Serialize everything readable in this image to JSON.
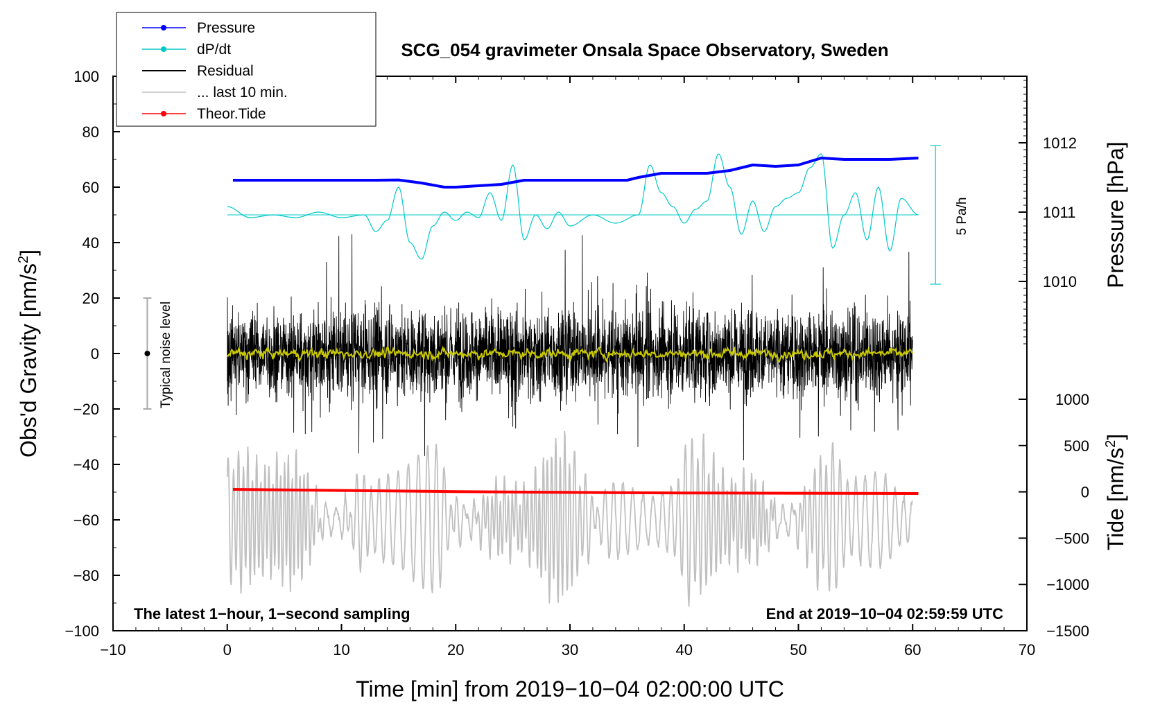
{
  "chart_data": {
    "type": "line",
    "title": "SCG_054 gravimeter Onsala Space Observatory, Sweden",
    "xlabel": "Time [min] from 2019−10−04 02:00:00 UTC",
    "ylabel_main": "Obs'd Gravity [nm/s",
    "ylabel_sup": "2",
    "ylabel_close": "]",
    "y2label_pressure": "Pressure [hPa]",
    "y2label_tide": "Tide [nm/s",
    "y2label_tide_sup": "2",
    "y2label_tide_close": "]",
    "xlim": [
      -10,
      70
    ],
    "ylim": [
      -100,
      100
    ],
    "x_ticks": [
      "−10",
      "0",
      "10",
      "20",
      "30",
      "40",
      "50",
      "60",
      "70"
    ],
    "x_tick_values": [
      -10,
      0,
      10,
      20,
      30,
      40,
      50,
      60,
      70
    ],
    "y_ticks": [
      "100",
      "80",
      "60",
      "40",
      "20",
      "0",
      "−20",
      "−40",
      "−60",
      "−80",
      "−100"
    ],
    "y_tick_values": [
      100,
      80,
      60,
      40,
      20,
      0,
      -20,
      -40,
      -60,
      -80,
      -100
    ],
    "pressure_ticks": [
      "1012",
      "1011",
      "1010"
    ],
    "pressure_tick_values": [
      1012,
      1011,
      1010
    ],
    "pressure_axis_map": {
      "hpa_1010": 26,
      "hpa_1011": 51,
      "hpa_1012": 76
    },
    "tide_ticks": [
      "1000",
      "500",
      "0",
      "−500",
      "−1000",
      "−1500"
    ],
    "tide_tick_values": [
      1000,
      500,
      0,
      -500,
      -1000,
      -1500
    ],
    "tide_axis_map": {
      "tide_1000": -16.5,
      "tide_minus_1500": -100
    },
    "legend": {
      "position": "top-left",
      "items": [
        {
          "label": "Pressure",
          "color": "#0000ff",
          "marker": true
        },
        {
          "label": "dP/dt",
          "color": "#00c8c8",
          "marker": true
        },
        {
          "label": "Residual",
          "color": "#000000",
          "marker": false
        },
        {
          "label": "... last 10 min.",
          "color": "#c0c0c0",
          "marker": false
        },
        {
          "label": "Theor.Tide",
          "color": "#ff0000",
          "marker": true
        }
      ]
    },
    "annotations": {
      "bottom_left": "The latest 1−hour, 1−second sampling",
      "bottom_right": "End at 2019−10−04 02:59:59 UTC",
      "noise_label": "Typical noise level",
      "noise_bar": {
        "x": -7,
        "center": 0,
        "low": -20,
        "high": 20
      },
      "dpdt_scale_label": "5 Pa/h",
      "dpdt_scale_bar": {
        "x": 62,
        "low": 25,
        "high": 75
      }
    },
    "series": [
      {
        "name": "Pressure",
        "color": "#0000ff",
        "x": [
          0.5,
          5,
          10,
          13,
          15,
          17,
          19,
          20,
          22,
          24,
          26,
          30,
          35,
          36,
          38,
          42,
          44,
          46,
          48,
          50,
          52,
          54,
          56,
          58,
          60.5
        ],
        "y": [
          62.5,
          62.5,
          62.5,
          62.5,
          62.6,
          61.5,
          60,
          60,
          60.5,
          61,
          62.5,
          62.5,
          62.5,
          63.5,
          65,
          65,
          66,
          68,
          67.5,
          68,
          70.5,
          70,
          70,
          70,
          70.5
        ]
      },
      {
        "name": "dP/dt",
        "color": "#00c8c8",
        "x": [
          0,
          2,
          4,
          6,
          8,
          10,
          12,
          13,
          14,
          15,
          16,
          17,
          18,
          19,
          20,
          21,
          22,
          23,
          24,
          25,
          26,
          27,
          28,
          29,
          30,
          32,
          34,
          36,
          37,
          38,
          39,
          40,
          41,
          42,
          43,
          44,
          45,
          46,
          47,
          48,
          49,
          50,
          51,
          52,
          53,
          54,
          55,
          56,
          57,
          58,
          59,
          60.5
        ],
        "y": [
          53,
          49,
          50,
          49,
          51,
          49,
          50,
          44,
          48,
          60,
          40,
          34,
          46,
          51,
          48,
          51,
          49,
          58,
          48,
          68,
          41,
          50,
          45,
          51,
          46,
          50,
          47,
          50,
          68,
          58,
          53,
          47,
          52,
          55,
          72,
          60,
          43,
          55,
          44,
          53,
          56,
          58,
          67,
          72,
          38,
          50,
          58,
          41,
          60,
          37,
          56,
          50
        ]
      },
      {
        "name": "Residual",
        "color": "#000000",
        "x_range": [
          0,
          60
        ],
        "amplitude": 28,
        "min": -40,
        "max": 43
      },
      {
        "name": "Residual (smoothed)",
        "color": "#c8c800",
        "x_range": [
          0,
          60
        ],
        "amplitude": 2.5
      },
      {
        "name": "... last 10 min.",
        "color": "#c0c0c0",
        "x_range": [
          0,
          60
        ],
        "center": -60,
        "min": -97,
        "max": -23
      },
      {
        "name": "Theor.Tide",
        "color": "#ff0000",
        "x": [
          0.5,
          10,
          20,
          30,
          40,
          50,
          60.5
        ],
        "y": [
          -49,
          -49.4,
          -49.8,
          -50.1,
          -50.3,
          -50.4,
          -50.5
        ]
      }
    ]
  }
}
